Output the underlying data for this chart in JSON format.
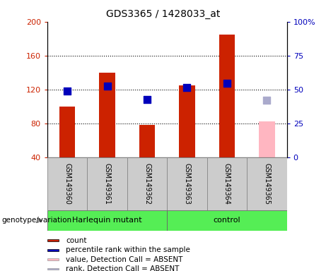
{
  "title": "GDS3365 / 1428033_at",
  "samples": [
    "GSM149360",
    "GSM149361",
    "GSM149362",
    "GSM149363",
    "GSM149364",
    "GSM149365"
  ],
  "count_values": [
    100,
    140,
    78,
    125,
    185,
    null
  ],
  "rank_values": [
    118,
    124,
    108,
    122,
    127,
    null
  ],
  "absent_count": [
    null,
    null,
    null,
    null,
    null,
    82
  ],
  "absent_rank": [
    null,
    null,
    null,
    null,
    null,
    107
  ],
  "ylim_left": [
    40,
    200
  ],
  "ylim_right": [
    0,
    100
  ],
  "yticks_left": [
    40,
    80,
    120,
    160,
    200
  ],
  "ytick_labels_left": [
    "40",
    "80",
    "120",
    "160",
    "200"
  ],
  "yticks_right": [
    0,
    25,
    50,
    75,
    100
  ],
  "ytick_labels_right": [
    "0",
    "25",
    "50",
    "75",
    "100%"
  ],
  "group_labels": [
    "Harlequin mutant",
    "control"
  ],
  "bar_color_red": "#cc2200",
  "bar_color_pink": "#ffb6c1",
  "dot_color_blue": "#0000bb",
  "dot_color_lightblue": "#aaaacc",
  "group_color": "#55ee55",
  "bg_color": "#cccccc",
  "legend_items": [
    {
      "label": "count",
      "color": "#cc2200"
    },
    {
      "label": "percentile rank within the sample",
      "color": "#0000bb"
    },
    {
      "label": "value, Detection Call = ABSENT",
      "color": "#ffb6c1"
    },
    {
      "label": "rank, Detection Call = ABSENT",
      "color": "#aaaacc"
    }
  ]
}
